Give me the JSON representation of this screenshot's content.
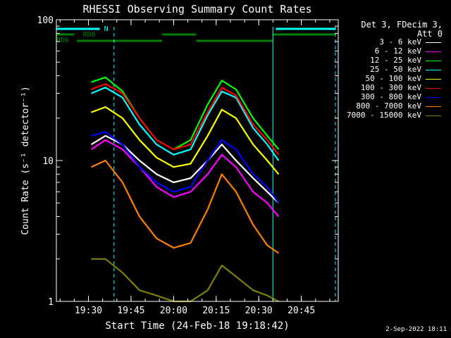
{
  "chart_data": {
    "type": "line",
    "title": "RHESSI Observing Summary Count Rates",
    "xlabel": "Start Time (24-Feb-18 19:18:42)",
    "ylabel": "Count Rate (s⁻¹ detector⁻¹)",
    "y_scale": "log",
    "ylim": [
      1,
      100
    ],
    "y_ticks": [
      "1",
      "10",
      "100"
    ],
    "x_range": [
      "19:18:42",
      "20:58:00"
    ],
    "x_ticks": [
      "19:30",
      "19:45",
      "20:00",
      "20:15",
      "20:30",
      "20:45"
    ],
    "legend_header": [
      "Det 3, FDecim 3,",
      "Att 0"
    ],
    "legend_placement": "right",
    "flag_labels": {
      "n": "N",
      "rd0": "RD0",
      "rd6": "RD6"
    },
    "series": [
      {
        "name": "3 - 6 keV",
        "color": "#ffffff",
        "x": [
          "19:31",
          "19:36",
          "19:42",
          "19:48",
          "19:54",
          "20:00",
          "20:06",
          "20:12",
          "20:17",
          "20:22",
          "20:28",
          "20:33",
          "20:37"
        ],
        "values": [
          13,
          15,
          13,
          10,
          8,
          7,
          7.5,
          10,
          13,
          10,
          7.5,
          6,
          5
        ]
      },
      {
        "name": "6 - 12 keV",
        "color": "#ff00ff",
        "x": [
          "19:31",
          "19:36",
          "19:42",
          "19:48",
          "19:54",
          "20:00",
          "20:06",
          "20:12",
          "20:17",
          "20:22",
          "20:28",
          "20:33",
          "20:37"
        ],
        "values": [
          12,
          14,
          12,
          9,
          6.5,
          5.5,
          6,
          8,
          11,
          9,
          6,
          5,
          4
        ]
      },
      {
        "name": "12 - 25 keV",
        "color": "#00ff00",
        "x": [
          "19:31",
          "19:36",
          "19:42",
          "19:48",
          "19:54",
          "20:00",
          "20:06",
          "20:12",
          "20:17",
          "20:22",
          "20:28",
          "20:33",
          "20:37"
        ],
        "values": [
          36,
          39,
          31,
          20,
          14,
          12,
          14,
          25,
          37,
          32,
          20,
          15,
          12
        ]
      },
      {
        "name": "25 - 50 keV",
        "color": "#00ffff",
        "x": [
          "19:31",
          "19:36",
          "19:42",
          "19:48",
          "19:54",
          "20:00",
          "20:06",
          "20:12",
          "20:17",
          "20:22",
          "20:28",
          "20:33",
          "20:37"
        ],
        "values": [
          30,
          33,
          28,
          18,
          13,
          11,
          12,
          21,
          31,
          28,
          17,
          13,
          10
        ]
      },
      {
        "name": "50 - 100 keV",
        "color": "#ffff00",
        "x": [
          "19:31",
          "19:36",
          "19:42",
          "19:48",
          "19:54",
          "20:00",
          "20:06",
          "20:12",
          "20:17",
          "20:22",
          "20:28",
          "20:33",
          "20:37"
        ],
        "values": [
          22,
          24,
          20,
          14,
          10.5,
          9,
          9.5,
          15,
          23,
          20,
          13,
          10,
          8
        ]
      },
      {
        "name": "100 - 300 keV",
        "color": "#ff0000",
        "x": [
          "19:31",
          "19:36",
          "19:42",
          "19:48",
          "19:54",
          "20:00",
          "20:06",
          "20:12",
          "20:17",
          "20:22",
          "20:28",
          "20:33",
          "20:37"
        ],
        "values": [
          32,
          35,
          30,
          20,
          14,
          12,
          13,
          22,
          33,
          29,
          18,
          14,
          11
        ]
      },
      {
        "name": "300 - 800 keV",
        "color": "#0000ff",
        "x": [
          "19:31",
          "19:36",
          "19:42",
          "19:48",
          "19:54",
          "20:00",
          "20:06",
          "20:12",
          "20:17",
          "20:22",
          "20:28",
          "20:33",
          "20:37"
        ],
        "values": [
          15,
          16,
          13,
          9,
          7,
          6,
          6.5,
          10,
          14,
          12,
          8,
          6.5,
          5
        ]
      },
      {
        "name": "800 - 7000 keV",
        "color": "#ff8000",
        "x": [
          "19:31",
          "19:36",
          "19:42",
          "19:48",
          "19:54",
          "20:00",
          "20:06",
          "20:12",
          "20:17",
          "20:22",
          "20:28",
          "20:33",
          "20:37"
        ],
        "values": [
          9,
          10,
          7,
          4,
          2.8,
          2.4,
          2.6,
          4.5,
          8,
          6,
          3.5,
          2.5,
          2.2
        ]
      },
      {
        "name": "7000 - 15000 keV",
        "color": "#808000",
        "x": [
          "19:31",
          "19:36",
          "19:42",
          "19:48",
          "19:54",
          "20:00",
          "20:06",
          "20:12",
          "20:17",
          "20:22",
          "20:28",
          "20:33",
          "20:37"
        ],
        "values": [
          2,
          2,
          1.6,
          1.2,
          1.1,
          1,
          1,
          1.2,
          1.8,
          1.5,
          1.2,
          1.1,
          1
        ]
      }
    ],
    "colors": {
      "background": "#000000",
      "axes": "#ffffff",
      "saa_flag": "#00ffff",
      "night_flag": "#008000"
    }
  },
  "footer": {
    "date": "2-Sep-2022 18:11"
  }
}
